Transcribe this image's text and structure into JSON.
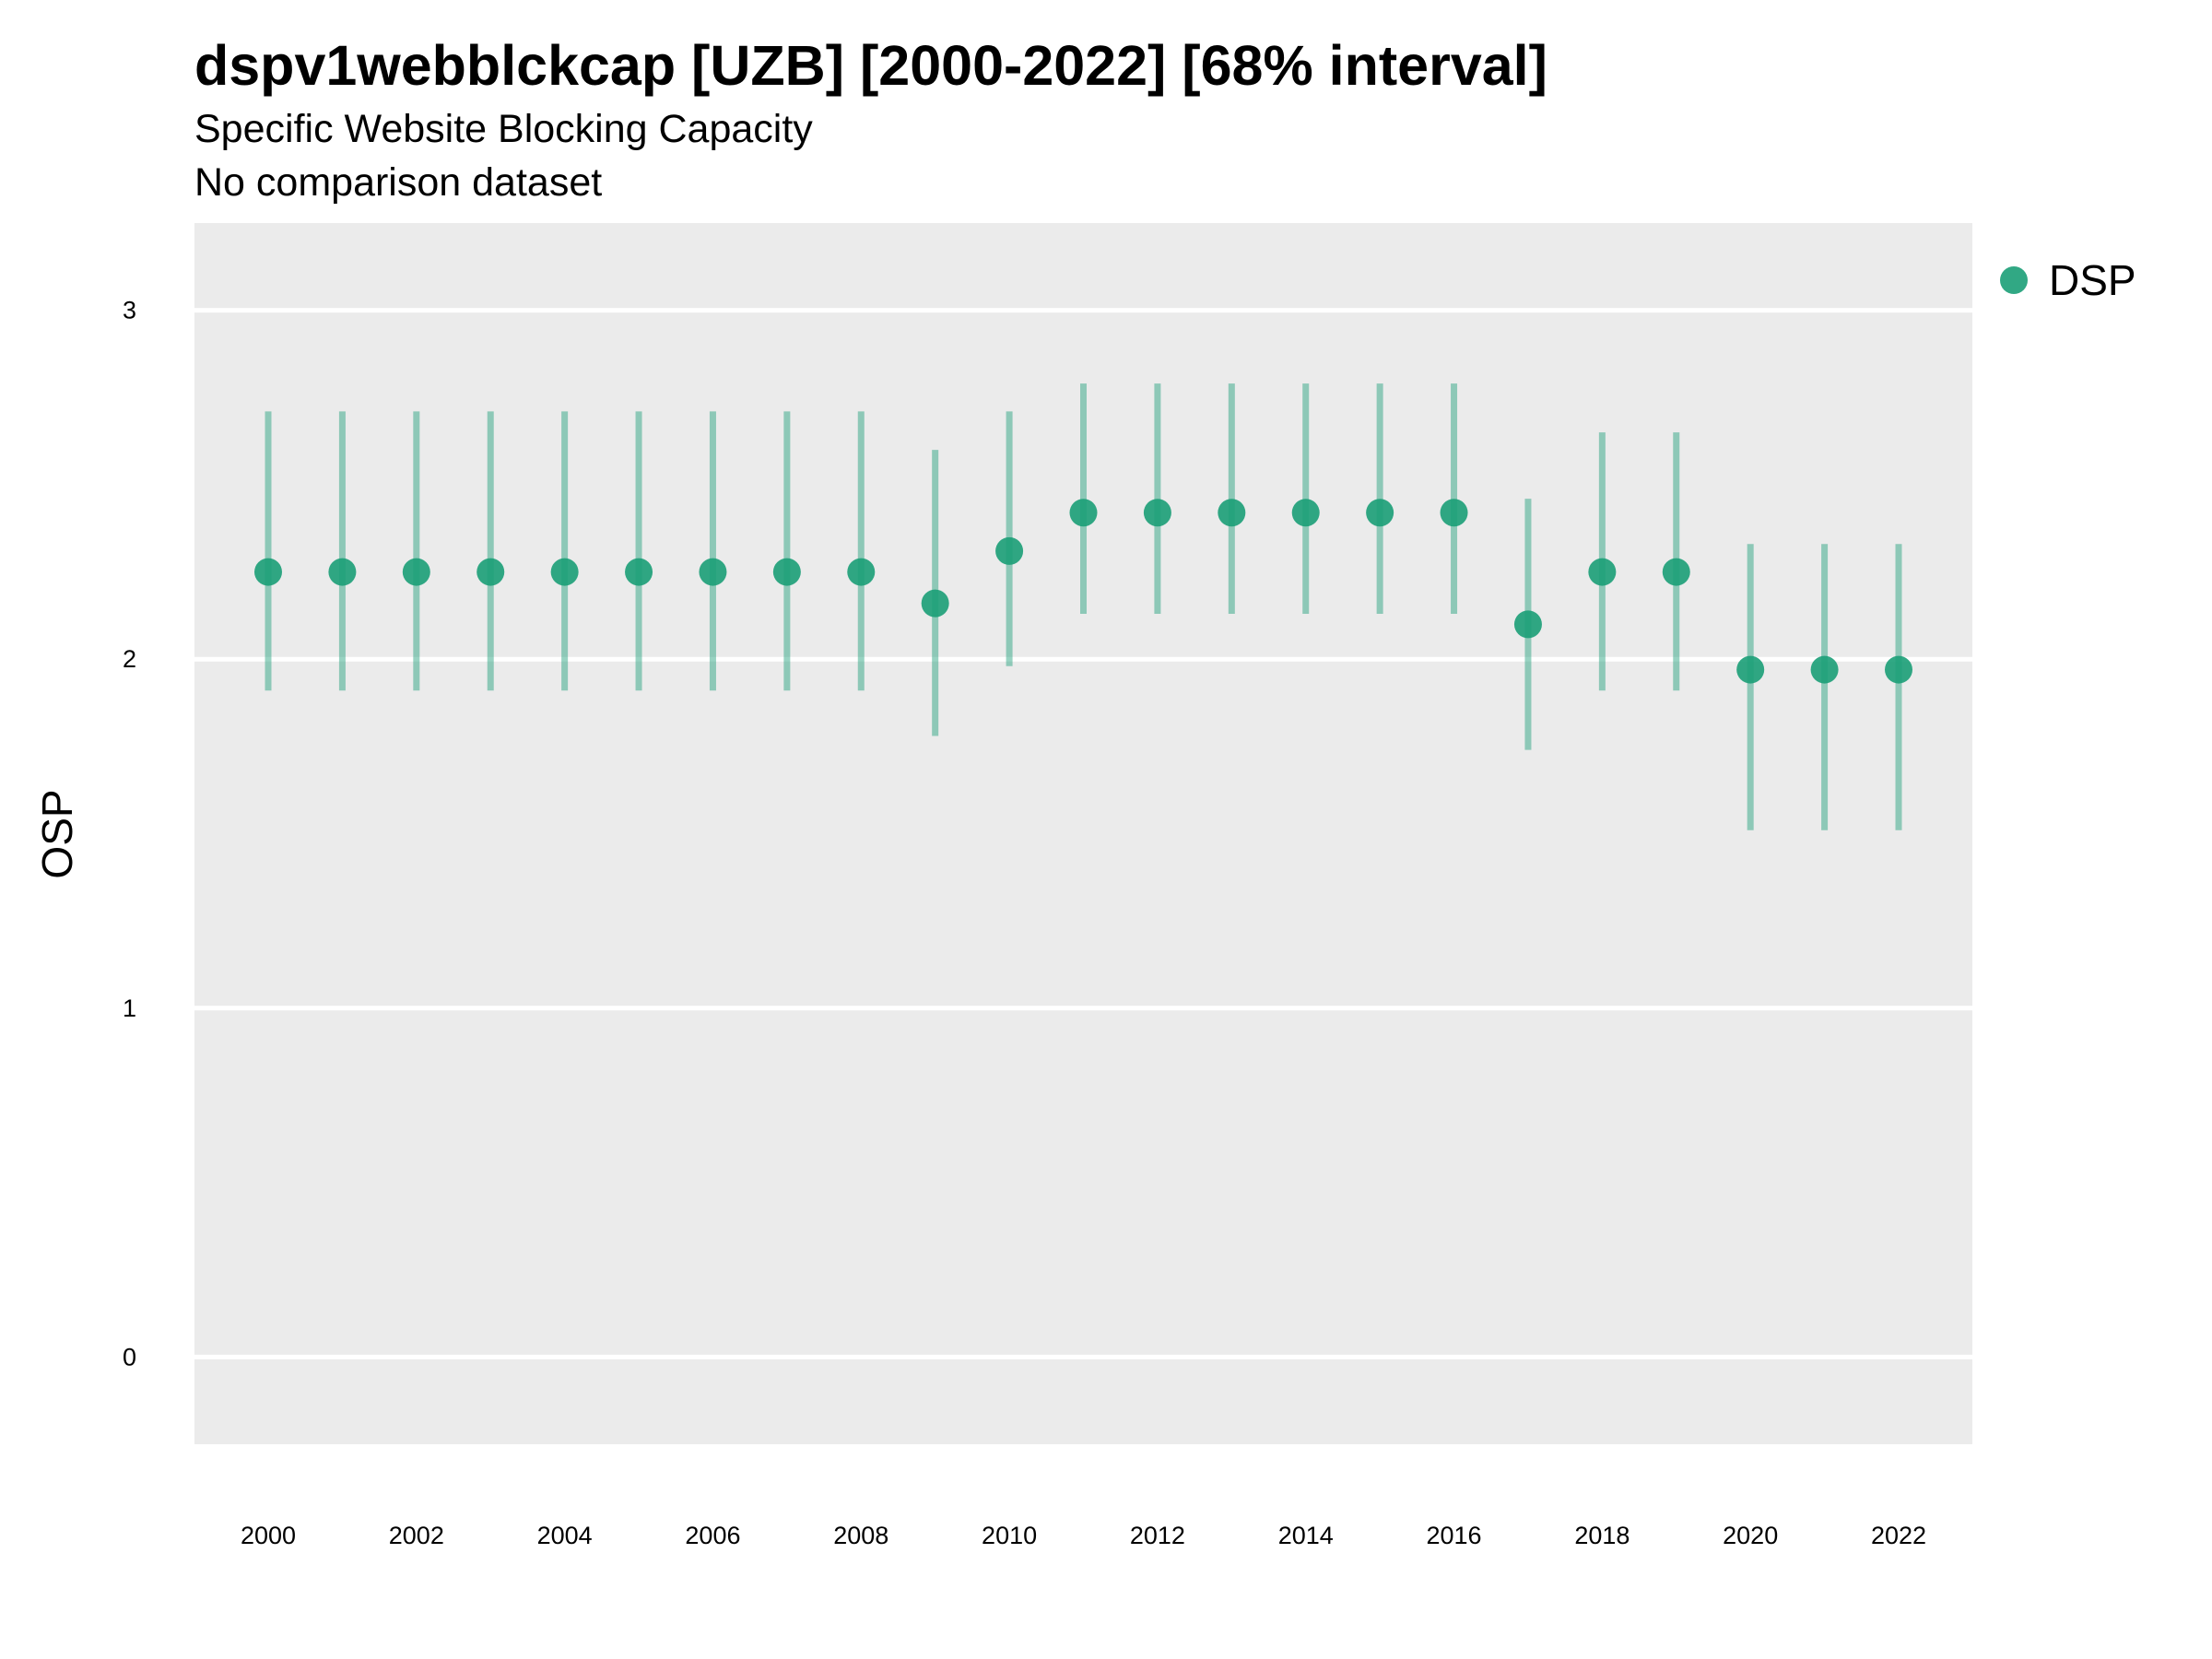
{
  "chart_data": {
    "type": "scatter",
    "title": "dspv1webblckcap [UZB] [2000-2022] [68% interval]",
    "subtitle": "Specific Website Blocking Capacity",
    "caption": "No comparison dataset",
    "xlabel": "",
    "ylabel": "OSP",
    "xlim": [
      1999,
      2023
    ],
    "ylim": [
      -0.25,
      3.25
    ],
    "x_ticks": [
      2000,
      2002,
      2004,
      2006,
      2008,
      2010,
      2012,
      2014,
      2016,
      2018,
      2020,
      2022
    ],
    "y_ticks": [
      0,
      1,
      2,
      3
    ],
    "grid": true,
    "legend": {
      "position": "top-right",
      "entries": [
        "DSP"
      ]
    },
    "colors": {
      "series": "#1b9e77",
      "panel": "#ebebeb",
      "grid": "#ffffff"
    },
    "series": [
      {
        "name": "DSP",
        "x": [
          2000,
          2001,
          2002,
          2003,
          2004,
          2005,
          2006,
          2007,
          2008,
          2009,
          2010,
          2011,
          2012,
          2013,
          2014,
          2015,
          2016,
          2017,
          2018,
          2019,
          2020,
          2021,
          2022
        ],
        "y": [
          2.25,
          2.25,
          2.25,
          2.25,
          2.25,
          2.25,
          2.25,
          2.25,
          2.25,
          2.16,
          2.31,
          2.42,
          2.42,
          2.42,
          2.42,
          2.42,
          2.42,
          2.1,
          2.25,
          2.25,
          1.97,
          1.97,
          1.97
        ],
        "lower": [
          1.91,
          1.91,
          1.91,
          1.91,
          1.91,
          1.91,
          1.91,
          1.91,
          1.91,
          1.78,
          1.98,
          2.13,
          2.13,
          2.13,
          2.13,
          2.13,
          2.13,
          1.74,
          1.91,
          1.91,
          1.51,
          1.51,
          1.51
        ],
        "upper": [
          2.71,
          2.71,
          2.71,
          2.71,
          2.71,
          2.71,
          2.71,
          2.71,
          2.71,
          2.6,
          2.71,
          2.79,
          2.79,
          2.79,
          2.79,
          2.79,
          2.79,
          2.46,
          2.65,
          2.65,
          2.33,
          2.33,
          2.33
        ]
      }
    ]
  }
}
